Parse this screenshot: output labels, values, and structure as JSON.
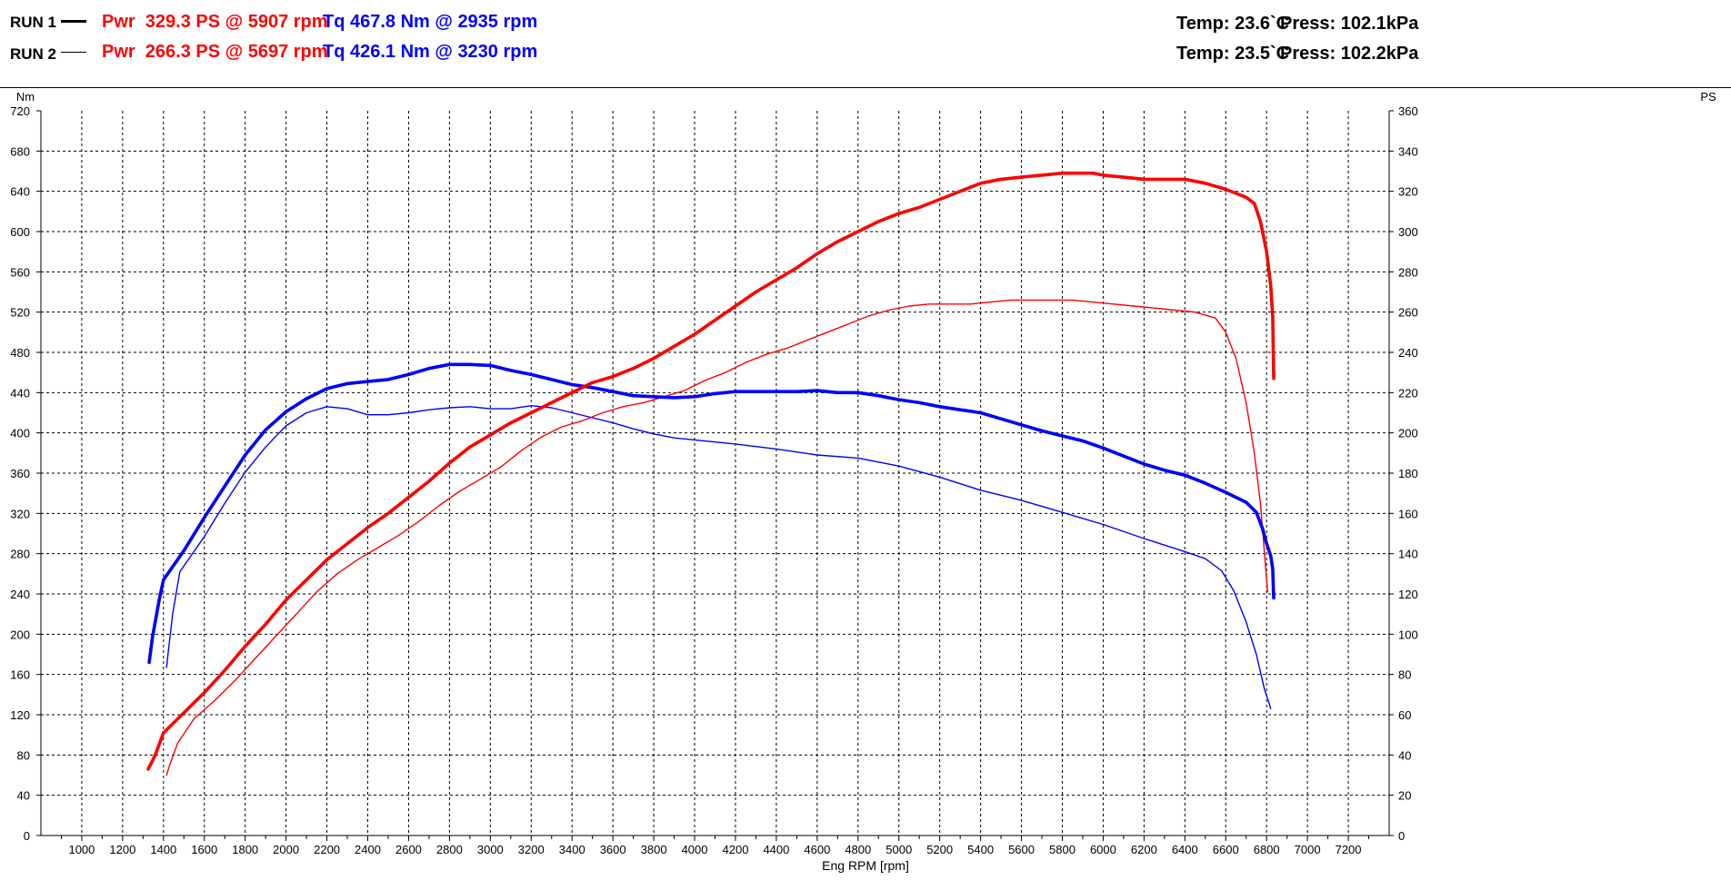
{
  "header": {
    "runs": [
      {
        "label": "RUN 1",
        "pwr": "Pwr  329.3 PS @ 5907 rpm",
        "tq": "Tq 467.8 Nm @ 2935 rpm",
        "temp": "Temp: 23.6`C",
        "press": "Press: 102.1kPa"
      },
      {
        "label": "RUN 2",
        "pwr": "Pwr  266.3 PS @ 5697 rpm",
        "tq": "Tq 426.1 Nm @ 3230 rpm",
        "temp": "Temp: 23.5`C",
        "press": "Press: 102.2kPa"
      }
    ]
  },
  "colors": {
    "power": "#ff0000",
    "torque": "#0000ff",
    "grid": "#000000",
    "background": "#ffffff"
  },
  "chart_data": {
    "type": "line",
    "xlabel": "Eng RPM [rpm]",
    "ylabel_left": "Nm",
    "ylabel_right": "PS",
    "xlim": [
      800,
      7400
    ],
    "ylim_left": [
      0,
      720
    ],
    "ylim_right": [
      0,
      360
    ],
    "x_ticks": [
      1000,
      1200,
      1400,
      1600,
      1800,
      2000,
      2200,
      2400,
      2600,
      2800,
      3000,
      3200,
      3400,
      3600,
      3800,
      4000,
      4200,
      4400,
      4600,
      4800,
      5000,
      5200,
      5400,
      5600,
      5800,
      6000,
      6200,
      6400,
      6600,
      6800,
      7000,
      7200
    ],
    "y_ticks_left": [
      0,
      40,
      80,
      120,
      160,
      200,
      240,
      280,
      320,
      360,
      400,
      440,
      480,
      520,
      560,
      600,
      640,
      680,
      720
    ],
    "y_ticks_right": [
      0,
      20,
      40,
      60,
      80,
      100,
      120,
      140,
      160,
      180,
      200,
      220,
      240,
      260,
      280,
      300,
      320,
      340,
      360
    ],
    "grid": true,
    "series": [
      {
        "run": "RUN 1",
        "quantity": "torque",
        "axis": "left",
        "color": "#0000ff",
        "width": "thick",
        "x": [
          1330,
          1345,
          1380,
          1400,
          1500,
          1600,
          1700,
          1800,
          1900,
          2000,
          2100,
          2200,
          2300,
          2400,
          2500,
          2600,
          2700,
          2800,
          2900,
          3000,
          3100,
          3200,
          3300,
          3400,
          3500,
          3600,
          3700,
          3800,
          3900,
          4000,
          4100,
          4200,
          4300,
          4400,
          4500,
          4600,
          4700,
          4800,
          4900,
          5000,
          5100,
          5200,
          5300,
          5400,
          5500,
          5600,
          5700,
          5800,
          5900,
          6000,
          6100,
          6200,
          6300,
          6400,
          6500,
          6600,
          6700,
          6750,
          6780,
          6800,
          6820,
          6830,
          6835
        ],
        "y": [
          172,
          196,
          235,
          254,
          283,
          316,
          347,
          378,
          403,
          421,
          434,
          444,
          449,
          451,
          453,
          458,
          464,
          468,
          468,
          467,
          462,
          458,
          453,
          448,
          445,
          441,
          437,
          436,
          435,
          436,
          439,
          441,
          441,
          441,
          441,
          442,
          440,
          440,
          437,
          433,
          430,
          426,
          423,
          420,
          414,
          408,
          402,
          397,
          392,
          385,
          377,
          369,
          363,
          358,
          350,
          341,
          331,
          321,
          305,
          290,
          278,
          265,
          236
        ]
      },
      {
        "run": "RUN 2",
        "quantity": "torque",
        "axis": "left",
        "color": "#0000ff",
        "width": "thin",
        "x": [
          1415,
          1425,
          1445,
          1480,
          1600,
          1700,
          1800,
          1900,
          2000,
          2100,
          2200,
          2300,
          2400,
          2500,
          2600,
          2700,
          2800,
          2900,
          3000,
          3100,
          3200,
          3300,
          3400,
          3500,
          3600,
          3700,
          3800,
          3900,
          4000,
          4200,
          4400,
          4600,
          4800,
          5000,
          5200,
          5400,
          5600,
          5800,
          6000,
          6200,
          6400,
          6500,
          6580,
          6640,
          6700,
          6750,
          6790,
          6810,
          6820
        ],
        "y": [
          167,
          185,
          220,
          262,
          297,
          330,
          361,
          386,
          407,
          420,
          426,
          424,
          418,
          418,
          420,
          423,
          425,
          426,
          424,
          424,
          427,
          425,
          420,
          415,
          410,
          404,
          399,
          395,
          393,
          389,
          384,
          378,
          375,
          367,
          356,
          343,
          333,
          321,
          309,
          295,
          282,
          275,
          263,
          243,
          212,
          180,
          145,
          133,
          126
        ]
      },
      {
        "run": "RUN 1",
        "quantity": "power",
        "axis": "right",
        "color": "#ff0000",
        "width": "thick",
        "x": [
          1325,
          1360,
          1400,
          1500,
          1600,
          1700,
          1800,
          1900,
          2000,
          2100,
          2200,
          2300,
          2400,
          2500,
          2600,
          2700,
          2800,
          2900,
          3000,
          3100,
          3200,
          3300,
          3400,
          3500,
          3600,
          3700,
          3800,
          3900,
          4000,
          4100,
          4200,
          4300,
          4400,
          4500,
          4600,
          4700,
          4800,
          4900,
          5000,
          5100,
          5200,
          5300,
          5400,
          5500,
          5600,
          5700,
          5800,
          5900,
          5950,
          6000,
          6100,
          6200,
          6300,
          6400,
          6500,
          6600,
          6700,
          6740,
          6770,
          6800,
          6820,
          6830,
          6835
        ],
        "y": [
          33,
          40,
          51,
          61,
          71,
          82,
          94,
          105,
          117,
          127,
          137,
          145,
          153,
          160,
          168,
          176,
          185,
          193,
          199,
          205,
          210,
          215,
          220,
          225,
          228,
          232,
          237,
          243,
          249,
          256,
          263,
          270,
          276,
          282,
          289,
          295,
          300,
          305,
          309,
          312,
          316,
          320,
          324,
          326,
          327,
          328,
          329,
          329,
          329,
          328,
          327,
          326,
          326,
          326,
          324,
          321,
          317,
          314,
          305,
          290,
          273,
          258,
          227
        ]
      },
      {
        "run": "RUN 2",
        "quantity": "power",
        "axis": "right",
        "color": "#ff0000",
        "width": "thin",
        "x": [
          1415,
          1430,
          1470,
          1550,
          1650,
          1750,
          1850,
          1950,
          2050,
          2150,
          2250,
          2350,
          2450,
          2550,
          2650,
          2750,
          2850,
          2950,
          3050,
          3150,
          3250,
          3350,
          3450,
          3550,
          3650,
          3750,
          3850,
          3950,
          4050,
          4150,
          4250,
          4350,
          4450,
          4550,
          4650,
          4750,
          4850,
          4950,
          5050,
          5150,
          5250,
          5350,
          5450,
          5550,
          5650,
          5750,
          5850,
          5950,
          6050,
          6150,
          6250,
          6350,
          6450,
          6550,
          6600,
          6650,
          6700,
          6740,
          6770,
          6790,
          6805
        ],
        "y": [
          30,
          35,
          46,
          58,
          67,
          77,
          88,
          99,
          110,
          121,
          130,
          137,
          143,
          149,
          156,
          164,
          171,
          177,
          183,
          191,
          198,
          203,
          206,
          210,
          213,
          215,
          218,
          221,
          226,
          230,
          235,
          239,
          242,
          246,
          250,
          254,
          258,
          261,
          263,
          264,
          264,
          264,
          265,
          266,
          266,
          266,
          266,
          265,
          264,
          263,
          262,
          261,
          260,
          257,
          250,
          237,
          215,
          190,
          165,
          140,
          121
        ]
      }
    ]
  }
}
